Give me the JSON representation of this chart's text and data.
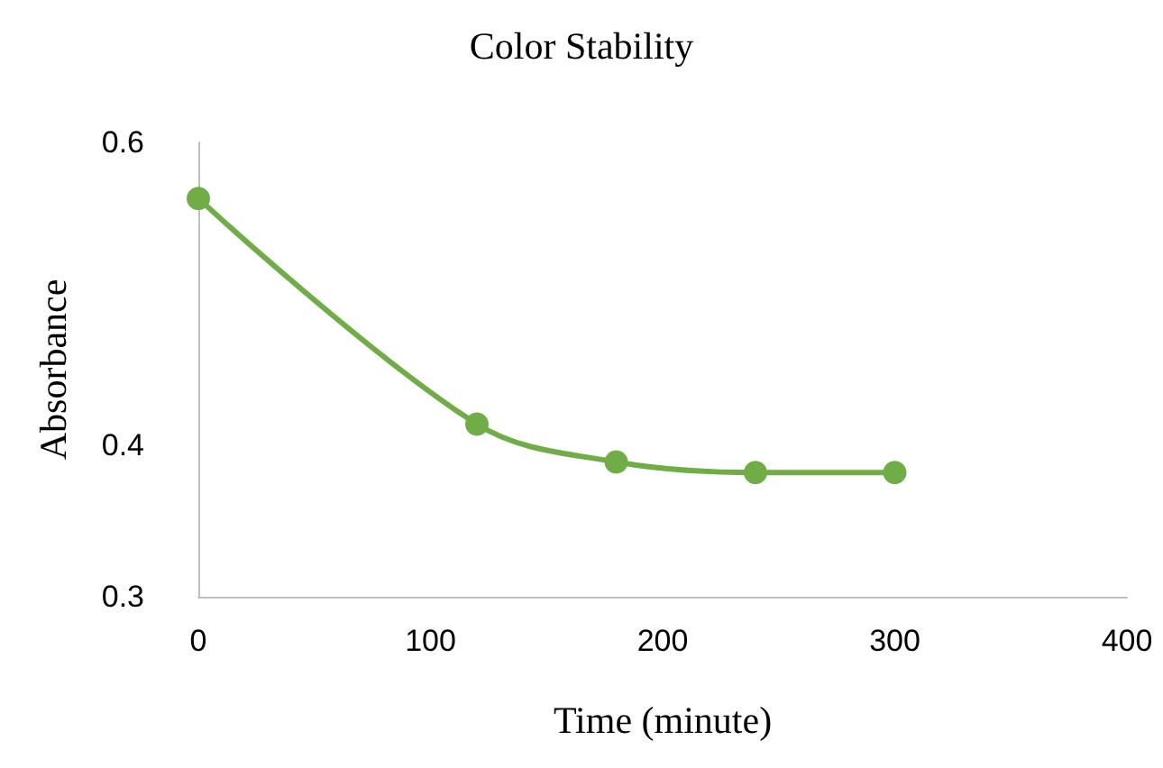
{
  "chart_data": {
    "type": "line",
    "title": "Color Stability",
    "xlabel": "Time (minute)",
    "ylabel": "Absorbance",
    "x": [
      0,
      120,
      180,
      240,
      300
    ],
    "series": [
      {
        "color": "#70ad47",
        "values": [
          0.563,
          0.414,
          0.389,
          0.382,
          0.382
        ]
      }
    ],
    "xlim": [
      0,
      400
    ],
    "xticks": [
      0,
      100,
      200,
      300,
      400
    ],
    "ylim": [
      0.3,
      0.6
    ],
    "yticks": [
      0.3,
      0.4,
      0.6
    ],
    "grid": false,
    "marker": "circle",
    "line_style": "solid"
  }
}
